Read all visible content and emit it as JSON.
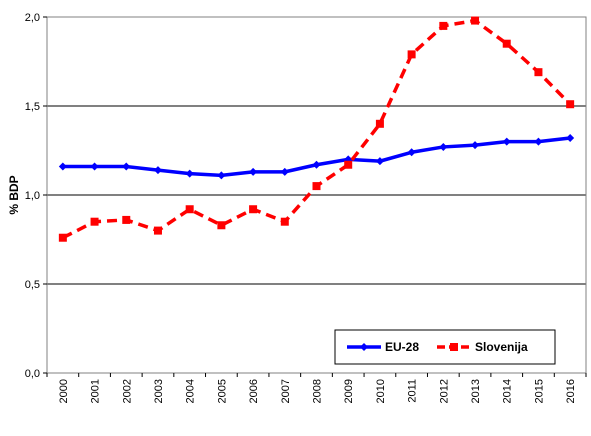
{
  "chart_data": {
    "type": "line",
    "title": "",
    "xlabel": "",
    "ylabel": "% BDP",
    "ylim": [
      0,
      2
    ],
    "yticks": [
      "0,0",
      "0,5",
      "1,0",
      "1,5",
      "2,0"
    ],
    "ytick_values": [
      0,
      0.5,
      1.0,
      1.5,
      2.0
    ],
    "grid": true,
    "legend_position": "bottom-right",
    "categories": [
      "2000",
      "2001",
      "2002",
      "2003",
      "2004",
      "2005",
      "2006",
      "2007",
      "2008",
      "2009",
      "2010",
      "2011",
      "2012",
      "2013",
      "2014",
      "2015",
      "2016"
    ],
    "series": [
      {
        "name": "EU-28",
        "color": "#0000FF",
        "marker": "diamond",
        "line_style": "solid",
        "values": [
          1.16,
          1.16,
          1.16,
          1.14,
          1.12,
          1.11,
          1.13,
          1.13,
          1.17,
          1.2,
          1.19,
          1.24,
          1.27,
          1.28,
          1.3,
          1.3,
          1.32
        ]
      },
      {
        "name": "Slovenija",
        "color": "#FF0000",
        "marker": "square",
        "line_style": "dashed",
        "values": [
          0.76,
          0.85,
          0.86,
          0.8,
          0.92,
          0.83,
          0.92,
          0.85,
          1.05,
          1.17,
          1.4,
          1.79,
          1.95,
          1.98,
          1.85,
          1.69,
          1.51
        ]
      }
    ]
  }
}
